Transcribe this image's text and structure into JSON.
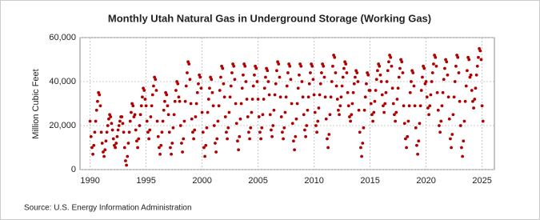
{
  "chart_data": {
    "type": "scatter",
    "title": "Monthly Utah Natural Gas in Underground Storage (Working Gas)",
    "y_label": "Million Cubic Feet",
    "source": "Source: U.S. Energy Information Administration",
    "color": "#b00000",
    "grid": true,
    "xlim": [
      1989.1,
      2026.1
    ],
    "ylim": [
      0,
      60000
    ],
    "xticks": [
      1990,
      1995,
      2000,
      2005,
      2010,
      2015,
      2020,
      2025
    ],
    "yticks": [
      0,
      {
        "value": 20000,
        "label": "20,000"
      },
      {
        "value": 40000,
        "label": "40,000"
      },
      {
        "value": 60000,
        "label": "60,000"
      }
    ],
    "x": [
      1990,
      1990.083,
      1990.167,
      1990.25,
      1990.333,
      1990.417,
      1990.5,
      1990.583,
      1990.667,
      1990.75,
      1990.833,
      1990.917,
      1991,
      1991.083,
      1991.167,
      1991.25,
      1991.333,
      1991.417,
      1991.5,
      1991.583,
      1991.667,
      1991.75,
      1991.833,
      1991.917,
      1992,
      1992.083,
      1992.167,
      1992.25,
      1992.333,
      1992.417,
      1992.5,
      1992.583,
      1992.667,
      1992.75,
      1992.833,
      1992.917,
      1993,
      1993.083,
      1993.167,
      1993.25,
      1993.333,
      1993.417,
      1993.5,
      1993.583,
      1993.667,
      1993.75,
      1993.833,
      1993.917,
      1994,
      1994.083,
      1994.167,
      1994.25,
      1994.333,
      1994.417,
      1994.5,
      1994.583,
      1994.667,
      1994.75,
      1994.833,
      1994.917,
      1995,
      1995.083,
      1995.167,
      1995.25,
      1995.333,
      1995.417,
      1995.5,
      1995.583,
      1995.667,
      1995.75,
      1995.833,
      1995.917,
      1996,
      1996.083,
      1996.167,
      1996.25,
      1996.333,
      1996.417,
      1996.5,
      1996.583,
      1996.667,
      1996.75,
      1996.833,
      1996.917,
      1997,
      1997.083,
      1997.167,
      1997.25,
      1997.333,
      1997.417,
      1997.5,
      1997.583,
      1997.667,
      1997.75,
      1997.833,
      1997.917,
      1998,
      1998.083,
      1998.167,
      1998.25,
      1998.333,
      1998.417,
      1998.5,
      1998.583,
      1998.667,
      1998.75,
      1998.833,
      1998.917,
      1999,
      1999.083,
      1999.167,
      1999.25,
      1999.333,
      1999.417,
      1999.5,
      1999.583,
      1999.667,
      1999.75,
      1999.833,
      1999.917,
      2000,
      2000.083,
      2000.167,
      2000.25,
      2000.333,
      2000.417,
      2000.5,
      2000.583,
      2000.667,
      2000.75,
      2000.833,
      2000.917,
      2001,
      2001.083,
      2001.167,
      2001.25,
      2001.333,
      2001.417,
      2001.5,
      2001.583,
      2001.667,
      2001.75,
      2001.833,
      2001.917,
      2002,
      2002.083,
      2002.167,
      2002.25,
      2002.333,
      2002.417,
      2002.5,
      2002.583,
      2002.667,
      2002.75,
      2002.833,
      2002.917,
      2003,
      2003.083,
      2003.167,
      2003.25,
      2003.333,
      2003.417,
      2003.5,
      2003.583,
      2003.667,
      2003.75,
      2003.833,
      2003.917,
      2004,
      2004.083,
      2004.167,
      2004.25,
      2004.333,
      2004.417,
      2004.5,
      2004.583,
      2004.667,
      2004.75,
      2004.833,
      2004.917,
      2005,
      2005.083,
      2005.167,
      2005.25,
      2005.333,
      2005.417,
      2005.5,
      2005.583,
      2005.667,
      2005.75,
      2005.833,
      2005.917,
      2006,
      2006.083,
      2006.167,
      2006.25,
      2006.333,
      2006.417,
      2006.5,
      2006.583,
      2006.667,
      2006.75,
      2006.833,
      2006.917,
      2007,
      2007.083,
      2007.167,
      2007.25,
      2007.333,
      2007.417,
      2007.5,
      2007.583,
      2007.667,
      2007.75,
      2007.833,
      2007.917,
      2008,
      2008.083,
      2008.167,
      2008.25,
      2008.333,
      2008.417,
      2008.5,
      2008.583,
      2008.667,
      2008.75,
      2008.833,
      2008.917,
      2009,
      2009.083,
      2009.167,
      2009.25,
      2009.333,
      2009.417,
      2009.5,
      2009.583,
      2009.667,
      2009.75,
      2009.833,
      2009.917,
      2010,
      2010.083,
      2010.167,
      2010.25,
      2010.333,
      2010.417,
      2010.5,
      2010.583,
      2010.667,
      2010.75,
      2010.833,
      2010.917,
      2011,
      2011.083,
      2011.167,
      2011.25,
      2011.333,
      2011.417,
      2011.5,
      2011.583,
      2011.667,
      2011.75,
      2011.833,
      2011.917,
      2012,
      2012.083,
      2012.167,
      2012.25,
      2012.333,
      2012.417,
      2012.5,
      2012.583,
      2012.667,
      2012.75,
      2012.833,
      2012.917,
      2013,
      2013.083,
      2013.167,
      2013.25,
      2013.333,
      2013.417,
      2013.5,
      2013.583,
      2013.667,
      2013.75,
      2013.833,
      2013.917,
      2014,
      2014.083,
      2014.167,
      2014.25,
      2014.333,
      2014.417,
      2014.5,
      2014.583,
      2014.667,
      2014.75,
      2014.833,
      2014.917,
      2015,
      2015.083,
      2015.167,
      2015.25,
      2015.333,
      2015.417,
      2015.5,
      2015.583,
      2015.667,
      2015.75,
      2015.833,
      2015.917,
      2016,
      2016.083,
      2016.167,
      2016.25,
      2016.333,
      2016.417,
      2016.5,
      2016.583,
      2016.667,
      2016.75,
      2016.833,
      2016.917,
      2017,
      2017.083,
      2017.167,
      2017.25,
      2017.333,
      2017.417,
      2017.5,
      2017.583,
      2017.667,
      2017.75,
      2017.833,
      2017.917,
      2018,
      2018.083,
      2018.167,
      2018.25,
      2018.333,
      2018.417,
      2018.5,
      2018.583,
      2018.667,
      2018.75,
      2018.833,
      2018.917,
      2019,
      2019.083,
      2019.167,
      2019.25,
      2019.333,
      2019.417,
      2019.5,
      2019.583,
      2019.667,
      2019.75,
      2019.833,
      2019.917,
      2020,
      2020.083,
      2020.167,
      2020.25,
      2020.333,
      2020.417,
      2020.5,
      2020.583,
      2020.667,
      2020.75,
      2020.833,
      2020.917,
      2021,
      2021.083,
      2021.167,
      2021.25,
      2021.333,
      2021.417,
      2021.5,
      2021.583,
      2021.667,
      2021.75,
      2021.833,
      2021.917,
      2022,
      2022.083,
      2022.167,
      2022.25,
      2022.333,
      2022.417,
      2022.5,
      2022.583,
      2022.667,
      2022.75,
      2022.833,
      2022.917,
      2023,
      2023.083,
      2023.167,
      2023.25,
      2023.333,
      2023.417,
      2023.5,
      2023.583,
      2023.667,
      2023.75,
      2023.833,
      2023.917,
      2024,
      2024.083,
      2024.167,
      2024.25,
      2024.333,
      2024.417,
      2024.5,
      2024.583,
      2024.667,
      2024.75,
      2024.833,
      2024.917,
      2025,
      2025.083
    ],
    "values": [
      22000,
      15000,
      10000,
      7000,
      11000,
      17000,
      22000,
      27000,
      31000,
      35000,
      34000,
      29000,
      17000,
      12000,
      8000,
      6000,
      9000,
      13000,
      17000,
      20000,
      23000,
      25000,
      24000,
      21000,
      18000,
      14000,
      11000,
      10000,
      12000,
      15000,
      18000,
      20000,
      22000,
      24000,
      24000,
      21000,
      17000,
      10000,
      4000,
      2000,
      6000,
      12000,
      17000,
      22000,
      26000,
      30000,
      29000,
      24000,
      25000,
      18000,
      13000,
      10000,
      14000,
      20000,
      25000,
      29000,
      33000,
      37000,
      36000,
      32000,
      29000,
      22000,
      17000,
      14000,
      18000,
      24000,
      29000,
      34000,
      38000,
      42000,
      41000,
      36000,
      22000,
      15000,
      10000,
      7000,
      11000,
      17000,
      22000,
      27000,
      31000,
      35000,
      34000,
      29000,
      25000,
      17000,
      10000,
      7000,
      12000,
      19000,
      25000,
      31000,
      36000,
      40000,
      39000,
      33000,
      31000,
      20000,
      12000,
      8000,
      14000,
      22000,
      31000,
      38000,
      44000,
      49000,
      48000,
      41000,
      30000,
      23000,
      17000,
      14000,
      18000,
      24000,
      30000,
      35000,
      39000,
      43000,
      42000,
      37000,
      26000,
      17000,
      10000,
      6000,
      11000,
      19000,
      26000,
      32000,
      37000,
      42000,
      41000,
      35000,
      29000,
      20000,
      12000,
      8000,
      14000,
      22000,
      29000,
      36000,
      42000,
      47000,
      46000,
      39000,
      33000,
      24000,
      17000,
      14000,
      19000,
      26000,
      33000,
      38000,
      44000,
      48000,
      47000,
      41000,
      30000,
      21000,
      13000,
      9000,
      15000,
      23000,
      30000,
      37000,
      43000,
      48000,
      47000,
      40000,
      32000,
      24000,
      17000,
      14000,
      19000,
      26000,
      32000,
      38000,
      43000,
      47000,
      46000,
      40000,
      32000,
      24000,
      17000,
      14000,
      19000,
      25000,
      32000,
      37000,
      42000,
      46000,
      45000,
      40000,
      34000,
      25000,
      18000,
      15000,
      20000,
      27000,
      34000,
      39000,
      45000,
      49000,
      48000,
      42000,
      33000,
      24000,
      17000,
      14000,
      19000,
      26000,
      33000,
      38000,
      44000,
      48000,
      47000,
      41000,
      30000,
      21000,
      13000,
      9000,
      15000,
      23000,
      30000,
      37000,
      43000,
      48000,
      47000,
      40000,
      33000,
      25000,
      18000,
      15000,
      20000,
      27000,
      33000,
      39000,
      44000,
      48000,
      47000,
      41000,
      34000,
      26000,
      20000,
      17000,
      22000,
      28000,
      34000,
      39000,
      44000,
      48000,
      47000,
      42000,
      33000,
      23000,
      14000,
      10000,
      16000,
      25000,
      33000,
      40000,
      47000,
      52000,
      51000,
      44000,
      38000,
      32000,
      27000,
      25000,
      29000,
      33000,
      38000,
      42000,
      46000,
      49000,
      48000,
      44000,
      35000,
      29000,
      24000,
      22000,
      25000,
      30000,
      35000,
      39000,
      42000,
      45000,
      44000,
      40000,
      27000,
      17000,
      10000,
      6000,
      12000,
      19000,
      27000,
      33000,
      39000,
      44000,
      43000,
      36000,
      36000,
      30000,
      25000,
      22000,
      26000,
      31000,
      36000,
      41000,
      45000,
      48000,
      47000,
      43000,
      40000,
      34000,
      29000,
      26000,
      30000,
      35000,
      40000,
      45000,
      49000,
      52000,
      51000,
      47000,
      37000,
      30000,
      25000,
      22000,
      26000,
      32000,
      37000,
      42000,
      46000,
      50000,
      49000,
      44000,
      29000,
      21000,
      14000,
      10000,
      15000,
      22000,
      29000,
      35000,
      40000,
      45000,
      44000,
      38000,
      29000,
      19000,
      11000,
      7000,
      13000,
      21000,
      29000,
      36000,
      42000,
      47000,
      46000,
      39000,
      40000,
      33000,
      28000,
      25000,
      29000,
      34000,
      40000,
      44000,
      48000,
      52000,
      51000,
      47000,
      35000,
      27000,
      20000,
      17000,
      22000,
      29000,
      35000,
      41000,
      46000,
      50000,
      49000,
      43000,
      33000,
      23000,
      14000,
      10000,
      16000,
      25000,
      33000,
      40000,
      47000,
      52000,
      51000,
      44000,
      31000,
      20000,
      10000,
      6000,
      13000,
      22000,
      31000,
      38000,
      45000,
      51000,
      50000,
      42000,
      43000,
      36000,
      31000,
      28000,
      32000,
      37000,
      43000,
      47000,
      51000,
      55000,
      54000,
      50000,
      29000,
      22000
    ]
  }
}
